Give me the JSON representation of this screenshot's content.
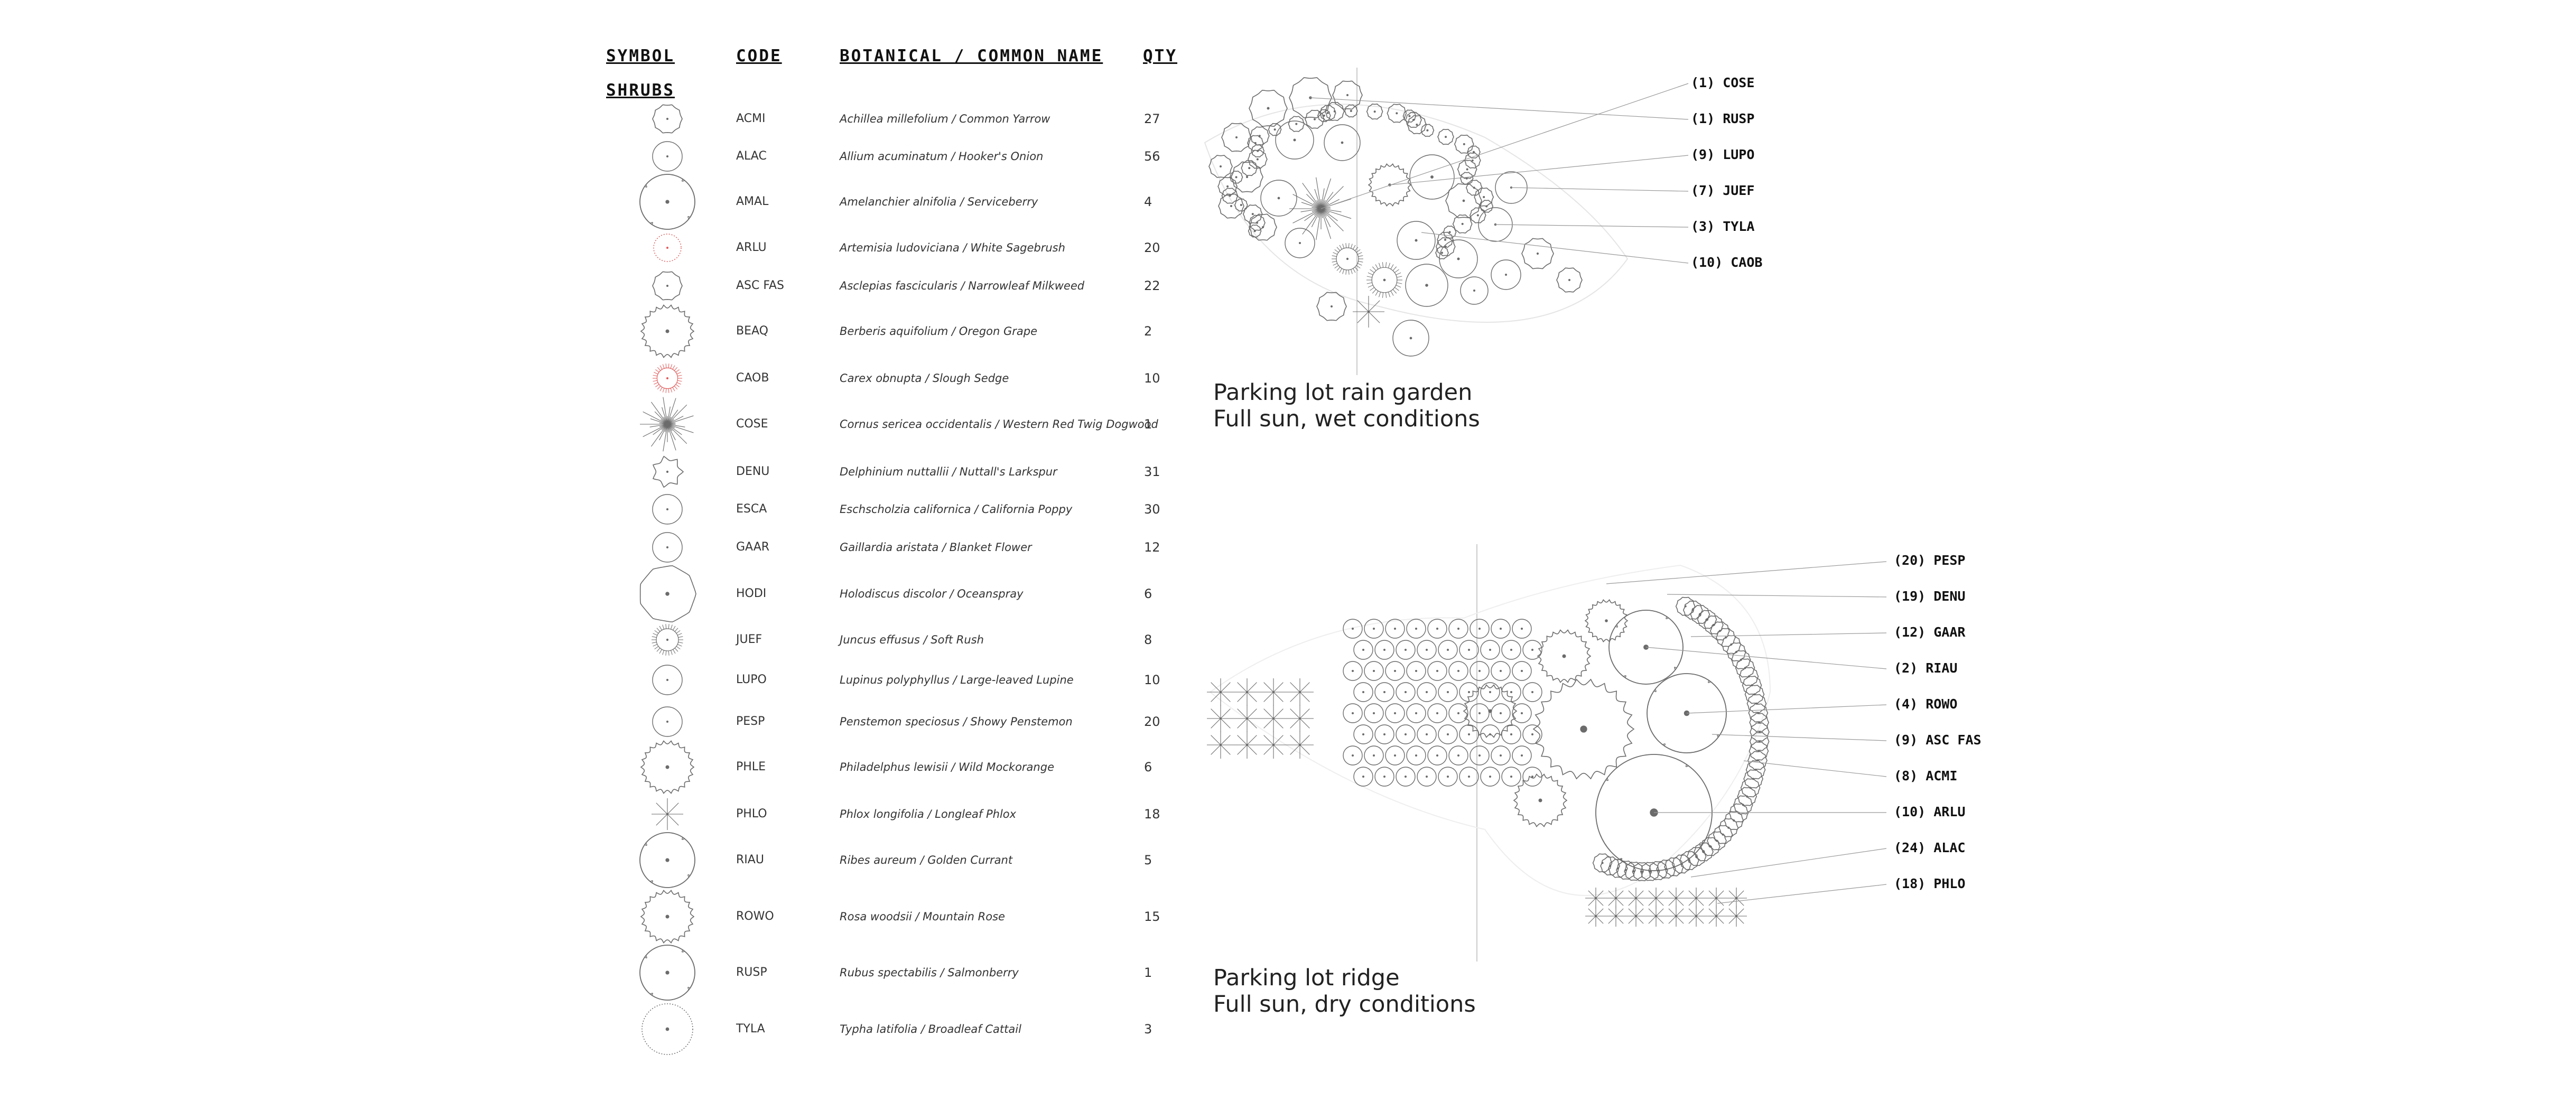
{
  "legend": {
    "headers": {
      "symbol": "SYMBOL",
      "code": "CODE",
      "name": "BOTANICAL / COMMON NAME",
      "qty": "QTY"
    },
    "section": "SHRUBS",
    "rows": [
      {
        "code": "ACMI",
        "name": "Achillea millefolium / Common Yarrow",
        "qty": "27",
        "icon": "scalloped-circle-icon"
      },
      {
        "code": "ALAC",
        "name": "Allium acuminatum / Hooker's Onion",
        "qty": "56",
        "icon": "small-circle-icon"
      },
      {
        "code": "AMAL",
        "name": "Amelanchier alnifolia / Serviceberry",
        "qty": "4",
        "icon": "large-lobed-circle-icon"
      },
      {
        "code": "ARLU",
        "name": "Artemisia ludoviciana / White Sagebrush",
        "qty": "20",
        "icon": "dotted-red-circle-icon",
        "color": "#e05a5a"
      },
      {
        "code": "ASC FAS",
        "name": "Asclepias fascicularis / Narrowleaf Milkweed",
        "qty": "22",
        "icon": "scalloped-circle-icon"
      },
      {
        "code": "BEAQ",
        "name": "Berberis aquifolium / Oregon Grape",
        "qty": "2",
        "icon": "spiky-circle-icon"
      },
      {
        "code": "CAOB",
        "name": "Carex obnupta / Slough Sedge",
        "qty": "10",
        "icon": "fringed-red-circle-icon",
        "color": "#e05a5a"
      },
      {
        "code": "COSE",
        "name": "Cornus sericea occidentalis / Western Red Twig Dogwood",
        "qty": "1",
        "icon": "radial-burst-icon"
      },
      {
        "code": "DENU",
        "name": "Delphinium nuttallii / Nuttall's Larkspur",
        "qty": "31",
        "icon": "flower-icon"
      },
      {
        "code": "ESCA",
        "name": "Eschscholzia californica / California Poppy",
        "qty": "30",
        "icon": "small-circle-icon"
      },
      {
        "code": "GAAR",
        "name": "Gaillardia aristata / Blanket Flower",
        "qty": "12",
        "icon": "small-circle-icon"
      },
      {
        "code": "HODI",
        "name": "Holodiscus discolor / Oceanspray",
        "qty": "6",
        "icon": "large-wavy-circle-icon"
      },
      {
        "code": "JUEF",
        "name": "Juncus effusus / Soft Rush",
        "qty": "8",
        "icon": "fringed-circle-icon"
      },
      {
        "code": "LUPO",
        "name": "Lupinus polyphyllus / Large-leaved Lupine",
        "qty": "10",
        "icon": "small-circle-icon"
      },
      {
        "code": "PESP",
        "name": "Penstemon speciosus / Showy Penstemon",
        "qty": "20",
        "icon": "small-circle-icon"
      },
      {
        "code": "PHLE",
        "name": "Philadelphus lewisii / Wild Mockorange",
        "qty": "6",
        "icon": "spiky-circle-icon"
      },
      {
        "code": "PHLO",
        "name": "Phlox longifolia / Longleaf Phlox",
        "qty": "18",
        "icon": "star-burst-icon"
      },
      {
        "code": "RIAU",
        "name": "Ribes aureum / Golden Currant",
        "qty": "5",
        "icon": "large-lobed-circle-icon"
      },
      {
        "code": "ROWO",
        "name": "Rosa woodsii / Mountain Rose",
        "qty": "15",
        "icon": "spiky-circle-icon"
      },
      {
        "code": "RUSP",
        "name": "Rubus spectabilis / Salmonberry",
        "qty": "1",
        "icon": "large-lobed-circle-icon"
      },
      {
        "code": "TYLA",
        "name": "Typha latifolia / Broadleaf Cattail",
        "qty": "3",
        "icon": "dotted-circle-icon"
      }
    ]
  },
  "plans": {
    "rain_garden": {
      "title": "Parking lot rain garden",
      "subtitle": "Full sun, wet conditions",
      "callouts": [
        "(1) COSE",
        "(1) RUSP",
        "(9) LUPO",
        "(7) JUEF",
        "(3) TYLA",
        "(10) CAOB"
      ]
    },
    "ridge": {
      "title": "Parking lot ridge",
      "subtitle": "Full sun, dry conditions",
      "callouts": [
        "(20) PESP",
        "(19) DENU",
        "(12) GAAR",
        "(2) RIAU",
        "(4) ROWO",
        "(9) ASC FAS",
        "(8) ACMI",
        "(10) ARLU",
        "(24) ALAC",
        "(18) PHLO"
      ]
    }
  }
}
